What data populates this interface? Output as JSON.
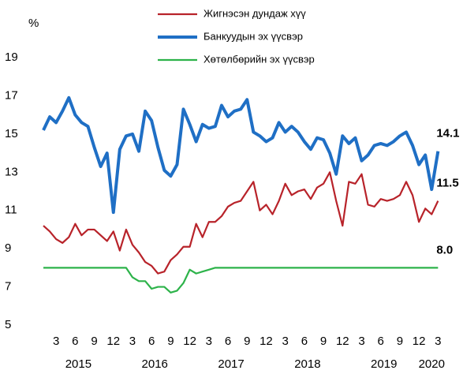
{
  "chart_data": {
    "type": "line",
    "y_label": "%",
    "categories": [
      null,
      null,
      "3",
      null,
      null,
      "6",
      null,
      null,
      "9",
      null,
      null,
      "12",
      null,
      null,
      "3",
      null,
      null,
      "6",
      null,
      null,
      "9",
      null,
      null,
      "12",
      null,
      null,
      "3",
      null,
      null,
      "6",
      null,
      null,
      "9",
      null,
      null,
      "12",
      null,
      null,
      "3",
      null,
      null,
      "6",
      null,
      null,
      "9",
      null,
      null,
      "12",
      null,
      null,
      "3",
      null,
      null,
      "6",
      null,
      null,
      "9",
      null,
      null,
      "12",
      null,
      null,
      "3"
    ],
    "years": [
      "2015",
      "2016",
      "2017",
      "2018",
      "2019",
      "2020"
    ],
    "ylim": [
      5,
      19
    ],
    "yticks": [
      5,
      7,
      9,
      11,
      13,
      15,
      17,
      19
    ],
    "grid": false,
    "legend": "top",
    "series": [
      {
        "name": "Жигнэсэн дундаж хүү",
        "color": "#b8232a",
        "values": [
          10.2,
          9.9,
          9.5,
          9.3,
          9.6,
          10.3,
          9.7,
          10.0,
          10.0,
          9.7,
          9.4,
          9.9,
          8.9,
          10.0,
          9.2,
          8.8,
          8.3,
          8.1,
          7.7,
          7.8,
          8.4,
          8.7,
          9.1,
          9.1,
          10.3,
          9.6,
          10.4,
          10.4,
          10.7,
          11.2,
          11.4,
          11.5,
          12.0,
          12.5,
          11.0,
          11.3,
          10.8,
          11.5,
          12.4,
          11.8,
          12.0,
          12.1,
          11.6,
          12.2,
          12.4,
          13.0,
          11.5,
          10.2,
          12.5,
          12.4,
          12.9,
          11.3,
          11.2,
          11.6,
          11.5,
          11.6,
          11.8,
          12.5,
          11.8,
          10.4,
          11.1,
          10.8,
          11.5
        ],
        "value_labels": [
          null,
          null,
          null,
          null,
          null,
          null,
          null,
          null,
          null,
          null,
          null,
          null,
          null,
          null,
          null,
          null,
          null,
          null,
          null,
          null,
          null,
          null,
          null,
          null,
          null,
          null,
          null,
          null,
          null,
          null,
          null,
          null,
          null,
          null,
          null,
          null,
          null,
          null,
          null,
          null,
          null,
          null,
          null,
          null,
          null,
          null,
          null,
          null,
          null,
          null,
          null,
          null,
          null,
          null,
          null,
          null,
          null,
          null,
          null,
          null,
          null,
          null,
          "11.5"
        ],
        "label_color": "#c0504d"
      },
      {
        "name": "Банкуудын эх үүсвэр",
        "color": "#1f6fc5",
        "values": [
          15.2,
          15.9,
          15.6,
          16.2,
          16.9,
          16.0,
          15.6,
          15.4,
          14.3,
          13.3,
          14.0,
          10.9,
          14.2,
          14.9,
          15.0,
          14.1,
          16.2,
          15.7,
          14.3,
          13.1,
          12.8,
          13.4,
          16.3,
          15.5,
          14.6,
          15.5,
          15.3,
          15.4,
          16.5,
          15.9,
          16.2,
          16.3,
          16.8,
          15.1,
          14.9,
          14.6,
          14.8,
          15.6,
          15.1,
          15.4,
          15.1,
          14.6,
          14.2,
          14.8,
          14.7,
          14.0,
          12.9,
          14.9,
          14.5,
          14.8,
          13.6,
          13.9,
          14.4,
          14.5,
          14.4,
          14.6,
          14.9,
          15.1,
          14.4,
          13.4,
          13.9,
          12.1,
          14.1
        ],
        "value_labels": [
          null,
          null,
          null,
          null,
          null,
          null,
          null,
          null,
          null,
          null,
          null,
          null,
          null,
          null,
          null,
          null,
          null,
          null,
          null,
          null,
          null,
          null,
          null,
          null,
          null,
          null,
          null,
          null,
          null,
          null,
          null,
          null,
          null,
          null,
          null,
          null,
          null,
          null,
          null,
          null,
          null,
          null,
          null,
          null,
          null,
          null,
          null,
          null,
          null,
          null,
          null,
          null,
          null,
          null,
          null,
          null,
          null,
          null,
          null,
          null,
          null,
          null,
          "14.1"
        ],
        "label_color": "#2e4a7d"
      },
      {
        "name": "Хөтөлбөрийн эх үүсвэр",
        "color": "#2db34a",
        "values": [
          8.0,
          8.0,
          8.0,
          8.0,
          8.0,
          8.0,
          8.0,
          8.0,
          8.0,
          8.0,
          8.0,
          8.0,
          8.0,
          8.0,
          7.5,
          7.3,
          7.3,
          6.9,
          7.0,
          7.0,
          6.7,
          6.8,
          7.2,
          7.9,
          7.7,
          7.8,
          7.9,
          8.0,
          8.0,
          8.0,
          8.0,
          8.0,
          8.0,
          8.0,
          8.0,
          8.0,
          8.0,
          8.0,
          8.0,
          8.0,
          8.0,
          8.0,
          8.0,
          8.0,
          8.0,
          8.0,
          8.0,
          8.0,
          8.0,
          8.0,
          8.0,
          8.0,
          8.0,
          8.0,
          8.0,
          8.0,
          8.0,
          8.0,
          8.0,
          8.0,
          8.0,
          8.0,
          8.0
        ],
        "value_labels": [
          null,
          null,
          null,
          null,
          null,
          null,
          null,
          null,
          null,
          null,
          null,
          null,
          null,
          null,
          null,
          null,
          null,
          null,
          null,
          null,
          null,
          null,
          null,
          null,
          null,
          null,
          null,
          null,
          null,
          null,
          null,
          null,
          null,
          null,
          null,
          null,
          null,
          null,
          null,
          null,
          null,
          null,
          null,
          null,
          null,
          null,
          null,
          null,
          null,
          null,
          null,
          null,
          null,
          null,
          null,
          null,
          null,
          null,
          null,
          null,
          null,
          null,
          "8.0"
        ],
        "label_color": "#8aa03c"
      }
    ]
  }
}
